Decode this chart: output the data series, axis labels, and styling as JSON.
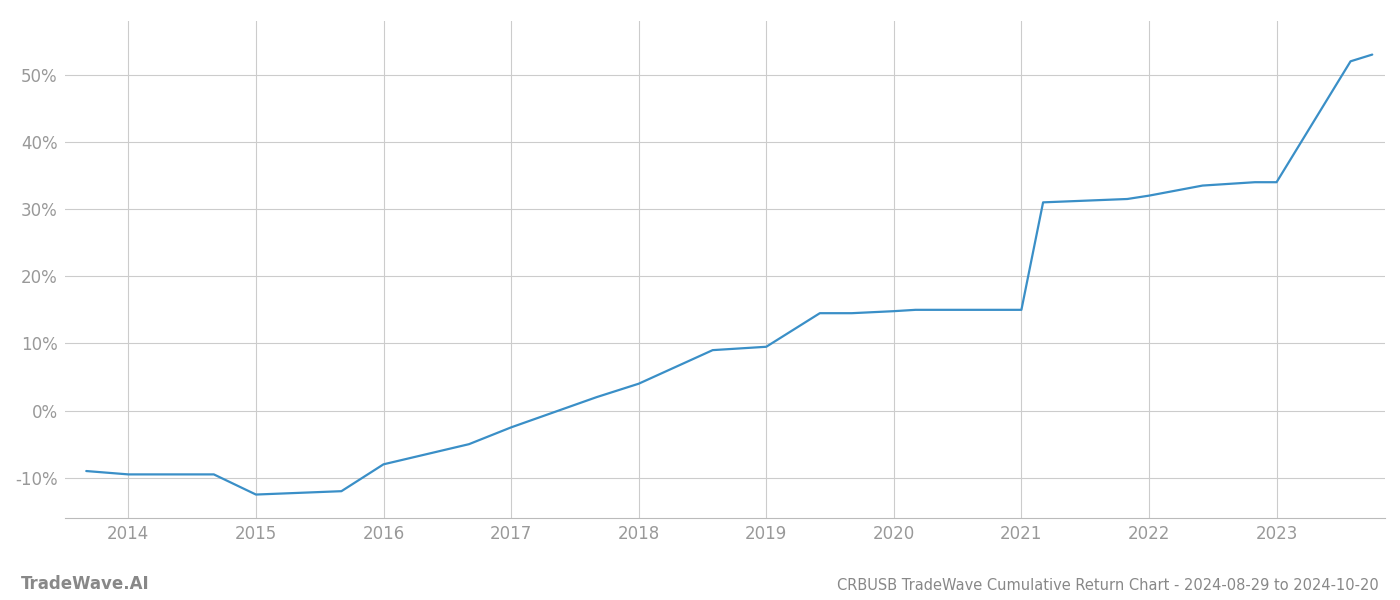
{
  "title": "CRBUSB TradeWave Cumulative Return Chart - 2024-08-29 to 2024-10-20",
  "watermark": "TradeWave.AI",
  "line_color": "#3a8fc7",
  "background_color": "#ffffff",
  "grid_color": "#cccccc",
  "x_years": [
    2014,
    2015,
    2016,
    2017,
    2018,
    2019,
    2020,
    2021,
    2022,
    2023
  ],
  "x_data": [
    2013.67,
    2014.0,
    2014.67,
    2015.0,
    2015.67,
    2016.0,
    2016.67,
    2017.0,
    2017.67,
    2018.0,
    2018.58,
    2019.0,
    2019.42,
    2019.67,
    2020.0,
    2020.17,
    2020.83,
    2021.0,
    2021.17,
    2021.83,
    2022.0,
    2022.42,
    2022.83,
    2023.0,
    2023.58,
    2023.75
  ],
  "y_data": [
    -9.0,
    -9.5,
    -9.5,
    -12.5,
    -12.0,
    -8.0,
    -5.0,
    -2.5,
    2.0,
    4.0,
    9.0,
    9.5,
    14.5,
    14.5,
    14.8,
    15.0,
    15.0,
    15.0,
    31.0,
    31.5,
    32.0,
    33.5,
    34.0,
    34.0,
    52.0,
    53.0
  ],
  "ylim": [
    -16,
    58
  ],
  "yticks": [
    -10,
    0,
    10,
    20,
    30,
    40,
    50
  ],
  "xlim": [
    2013.5,
    2023.85
  ],
  "title_fontsize": 10.5,
  "watermark_fontsize": 12,
  "tick_fontsize": 12,
  "tick_color": "#999999",
  "line_width": 1.6
}
